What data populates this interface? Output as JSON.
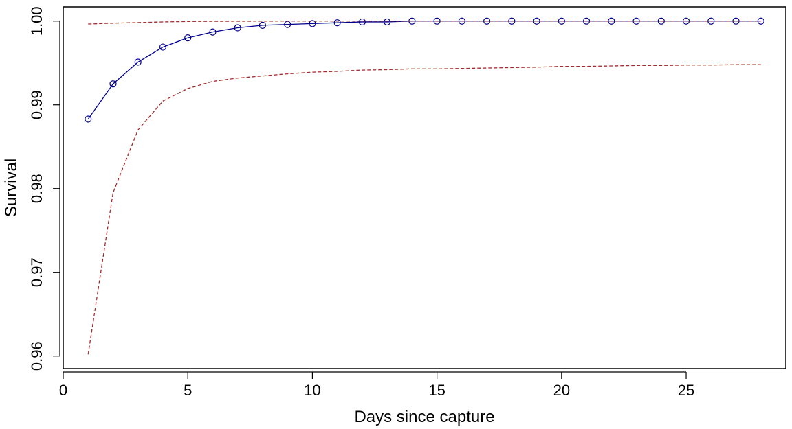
{
  "chart_data": {
    "type": "line",
    "xlabel": "Days since capture",
    "ylabel": "Survival",
    "xlim": [
      0,
      29
    ],
    "ylim": [
      0.9585,
      1.0017
    ],
    "x_ticks": [
      0,
      5,
      10,
      15,
      20,
      25
    ],
    "y_ticks": [
      0.96,
      0.97,
      0.98,
      0.99,
      1.0
    ],
    "y_tick_labels": [
      "0.96",
      "0.97",
      "0.98",
      "0.99",
      "1.00"
    ],
    "grid": false,
    "legend": "none",
    "x": [
      1,
      2,
      3,
      4,
      5,
      6,
      7,
      8,
      9,
      10,
      11,
      12,
      13,
      14,
      15,
      16,
      17,
      18,
      19,
      20,
      21,
      22,
      23,
      24,
      25,
      26,
      27,
      28
    ],
    "series": [
      {
        "role": "estimate",
        "style": "solid-with-circles",
        "color": "#00008b",
        "values": [
          0.9883,
          0.9925,
          0.9951,
          0.9969,
          0.998,
          0.9987,
          0.9992,
          0.9995,
          0.9996,
          0.9997,
          0.9998,
          0.9999,
          0.9999,
          1.0,
          1.0,
          1.0,
          1.0,
          1.0,
          1.0,
          1.0,
          1.0,
          1.0,
          1.0,
          1.0,
          1.0,
          1.0,
          1.0,
          1.0
        ]
      },
      {
        "role": "upper-bound",
        "style": "dashed",
        "color": "#a52a2a",
        "values": [
          0.99965,
          0.99975,
          0.99982,
          0.9999,
          0.99995,
          0.99997,
          0.99998,
          0.99999,
          1.0,
          1.0,
          1.0,
          1.0,
          1.0,
          1.0,
          1.0,
          1.0,
          1.0,
          1.0,
          1.0,
          1.0,
          1.0,
          1.0,
          1.0,
          1.0,
          1.0,
          1.0,
          1.0,
          1.0
        ]
      },
      {
        "role": "lower-bound",
        "style": "dashed",
        "color": "#a52a2a",
        "values": [
          0.9602,
          0.9795,
          0.987,
          0.99045,
          0.99195,
          0.9928,
          0.9932,
          0.99345,
          0.9937,
          0.9939,
          0.994,
          0.99415,
          0.9942,
          0.9943,
          0.9943,
          0.99435,
          0.9944,
          0.99445,
          0.9945,
          0.9946,
          0.9946,
          0.99465,
          0.9947,
          0.9947,
          0.99475,
          0.99475,
          0.9948,
          0.9948
        ]
      }
    ]
  }
}
